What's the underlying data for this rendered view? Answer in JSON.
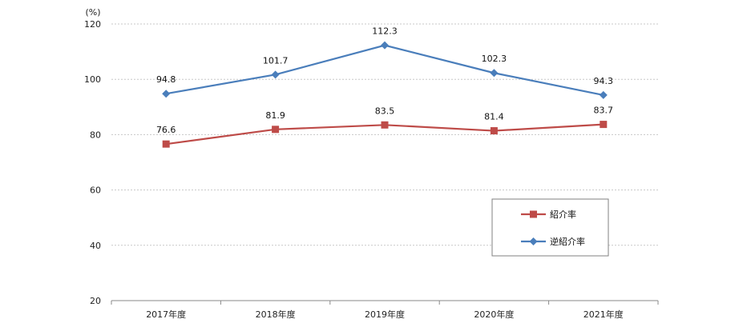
{
  "chart_data": {
    "type": "line",
    "y_unit": "(%)",
    "categories": [
      "2017年度",
      "2018年度",
      "2019年度",
      "2020年度",
      "2021年度"
    ],
    "ylim": [
      20,
      120
    ],
    "yticks": [
      20,
      40,
      60,
      80,
      100,
      120
    ],
    "grid": true,
    "legend_position": "lower-right",
    "series": [
      {
        "name": "紹介率",
        "color": "#be4b48",
        "marker": "square",
        "values": [
          76.6,
          81.9,
          83.5,
          81.4,
          83.7
        ],
        "labels": [
          "76.6",
          "81.9",
          "83.5",
          "81.4",
          "83.7"
        ]
      },
      {
        "name": "逆紹介率",
        "color": "#4a7ebb",
        "marker": "diamond",
        "values": [
          94.8,
          101.7,
          112.3,
          102.3,
          94.3
        ],
        "labels": [
          "94.8",
          "101.7",
          "112.3",
          "102.3",
          "94.3"
        ]
      }
    ]
  }
}
